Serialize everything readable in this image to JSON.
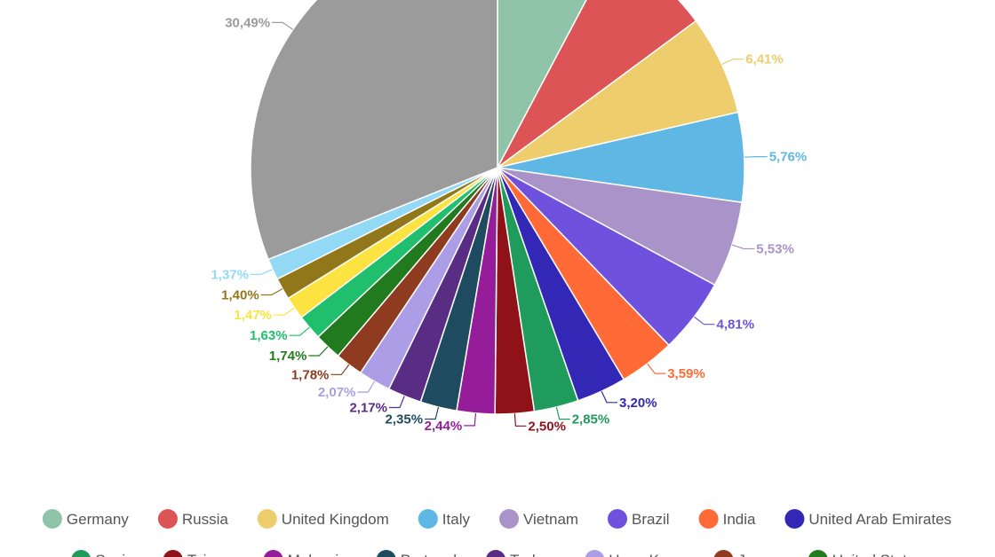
{
  "chart_data": {
    "type": "pie",
    "title": "",
    "slices": [
      {
        "label": "Germany",
        "value": 7.6,
        "color": "#8fc4a9",
        "label_text": ""
      },
      {
        "label": "Russia",
        "value": 6.98,
        "color": "#dc5456",
        "label_text": ""
      },
      {
        "label": "United Kingdom",
        "value": 6.41,
        "color": "#eecd6c",
        "label_text": "6,41%"
      },
      {
        "label": "Italy",
        "value": 5.76,
        "color": "#5fb7e4",
        "label_text": "5,76%"
      },
      {
        "label": "Vietnam",
        "value": 5.53,
        "color": "#aa93c8",
        "label_text": "5,53%"
      },
      {
        "label": "Brazil",
        "value": 4.81,
        "color": "#6e52dd",
        "label_text": "4,81%"
      },
      {
        "label": "India",
        "value": 3.59,
        "color": "#ff6a37",
        "label_text": "3,59%"
      },
      {
        "label": "United Arab Emirates",
        "value": 3.2,
        "color": "#3328b5",
        "label_text": "3,20%"
      },
      {
        "label": "Spain",
        "value": 2.85,
        "color": "#1f9c5c",
        "label_text": "2,85%"
      },
      {
        "label": "Taiwan",
        "value": 2.5,
        "color": "#8f1219",
        "label_text": "2,50%"
      },
      {
        "label": "Malaysia",
        "value": 2.44,
        "color": "#961d9a",
        "label_text": "2,44%"
      },
      {
        "label": "Portugal",
        "value": 2.35,
        "color": "#1e4b60",
        "label_text": "2,35%"
      },
      {
        "label": "Turkey",
        "value": 2.17,
        "color": "#5a2d85",
        "label_text": "2,17%"
      },
      {
        "label": "Hong Kong",
        "value": 2.07,
        "color": "#ab9ee6",
        "label_text": "2,07%"
      },
      {
        "label": "Japan",
        "value": 1.78,
        "color": "#8f3b1f",
        "label_text": "1,78%"
      },
      {
        "label": "United States",
        "value": 1.74,
        "color": "#217a1e",
        "label_text": "1,74%"
      },
      {
        "label": "",
        "value": 1.63,
        "color": "#1fbf6d",
        "label_text": "1,63%"
      },
      {
        "label": "",
        "value": 1.47,
        "color": "#fde342",
        "label_text": "1,47%"
      },
      {
        "label": "",
        "value": 1.4,
        "color": "#92771a",
        "label_text": "1,40%"
      },
      {
        "label": "",
        "value": 1.37,
        "color": "#92d9f6",
        "label_text": "1,37%"
      },
      {
        "label": "",
        "value": 30.49,
        "color": "#9b9b9b",
        "label_text": "30,49%"
      }
    ],
    "legend": {
      "row1": [
        "Germany",
        "Russia",
        "United Kingdom",
        "Italy",
        "Vietnam",
        "Brazil",
        "India",
        "United Arab Emirates"
      ],
      "row2": [
        "Spain",
        "Taiwan",
        "Malaysia",
        "Portugal",
        "Turkey",
        "Hong Kong",
        "Japan",
        "United States"
      ],
      "placement": "bottom"
    }
  }
}
